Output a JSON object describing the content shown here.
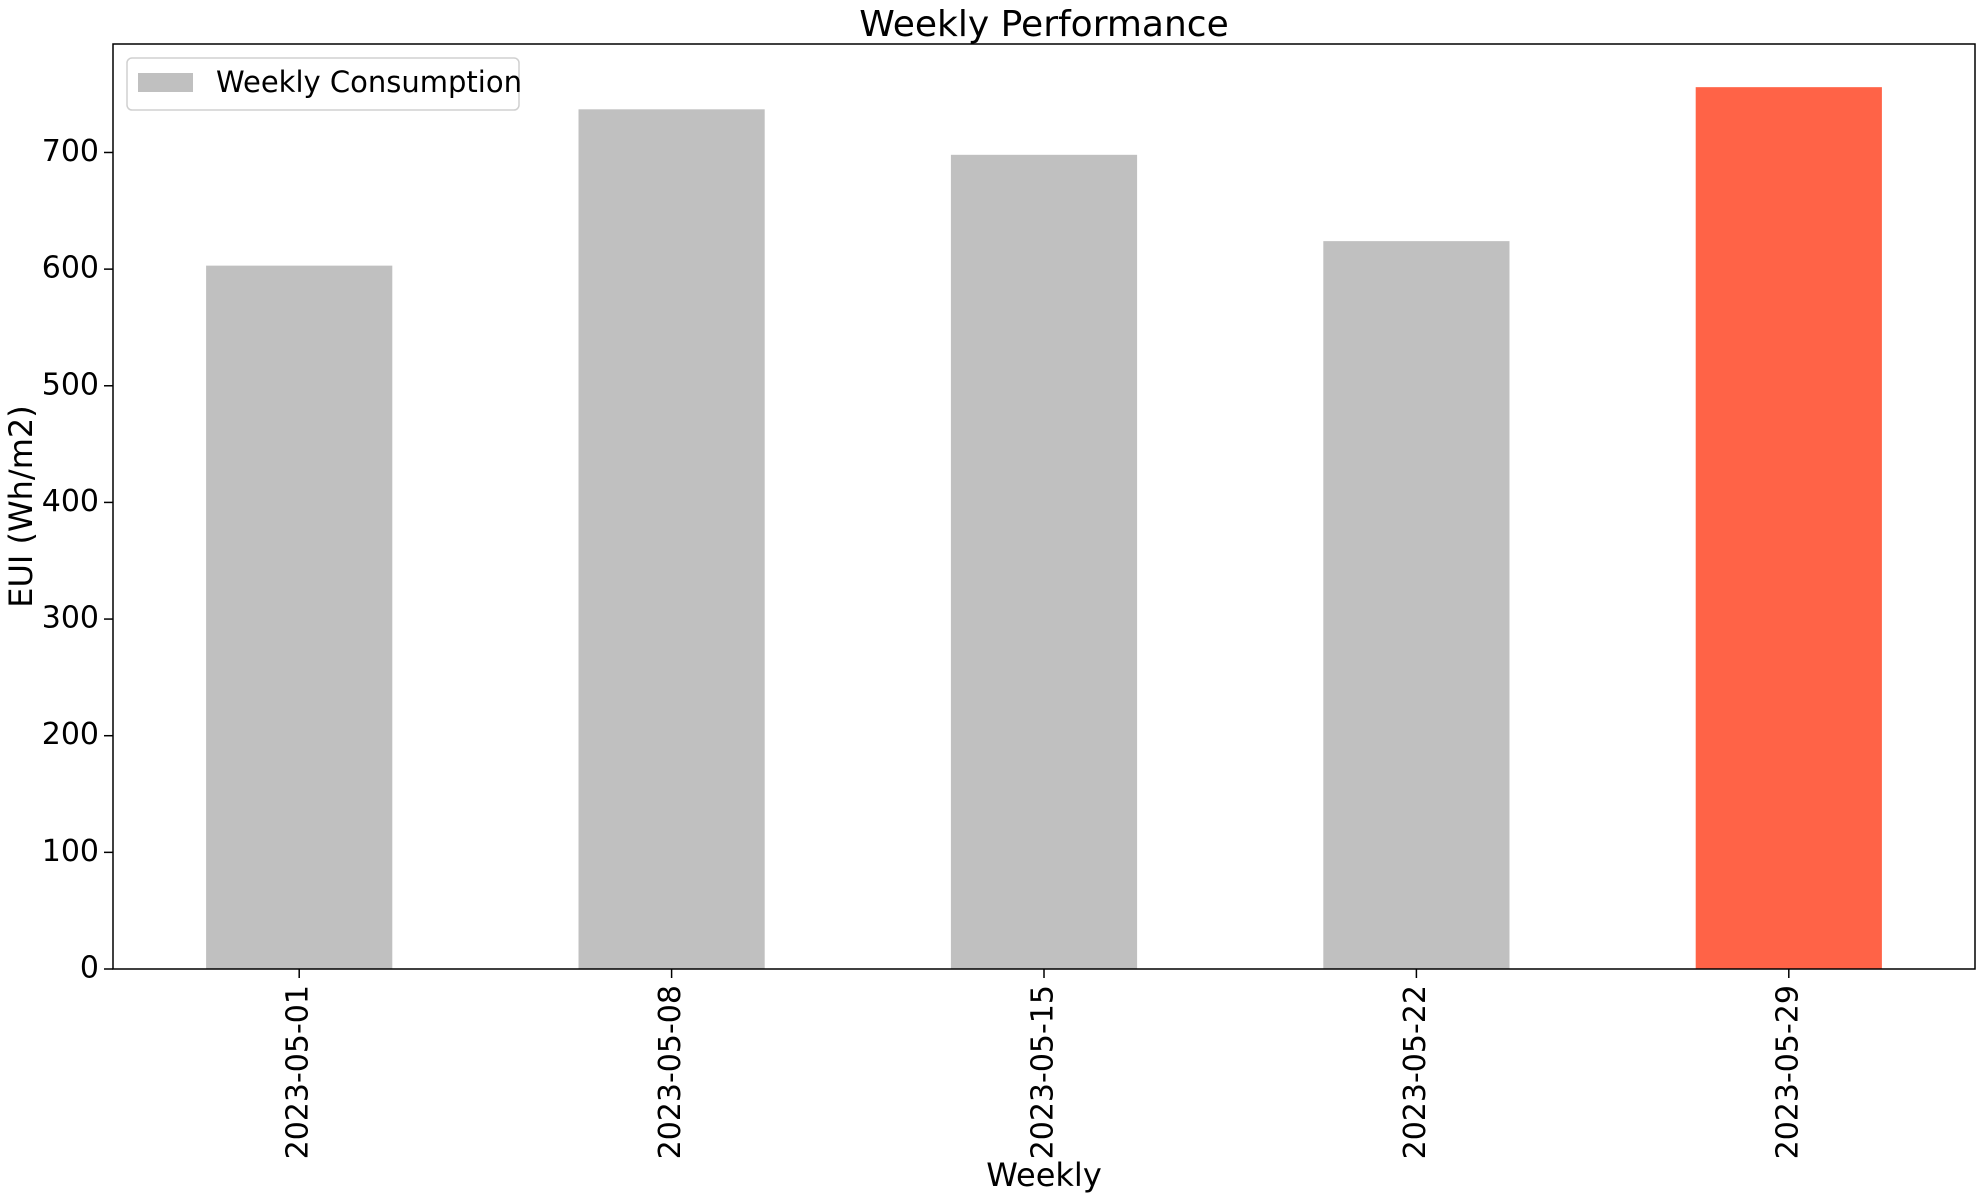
{
  "chart_data": {
    "type": "bar",
    "title": "Weekly Performance",
    "xlabel": "Weekly",
    "ylabel": "EUI (Wh/m2)",
    "categories": [
      "2023-05-01",
      "2023-05-08",
      "2023-05-15",
      "2023-05-22",
      "2023-05-29"
    ],
    "series": [
      {
        "name": "Weekly Consumption",
        "values": [
          603,
          737,
          698,
          624,
          756
        ]
      }
    ],
    "bar_colors": [
      "#c0c0c0",
      "#c0c0c0",
      "#c0c0c0",
      "#c0c0c0",
      "#ff6347"
    ],
    "legend_color": "#c0c0c0",
    "ylim": [
      0,
      793
    ],
    "yticks": [
      0,
      100,
      200,
      300,
      400,
      500,
      600,
      700
    ],
    "grid": false,
    "legend_position": "top-left"
  }
}
